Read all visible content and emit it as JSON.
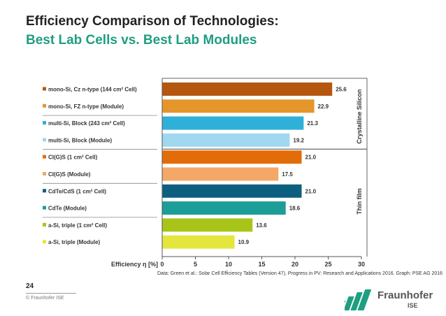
{
  "slide": {
    "title_line1": "Efficiency Comparison of Technologies:",
    "title_line2": "Best Lab Cells vs. Best Lab Modules",
    "source": "Data: Green et al.: Solar Cell Efficiency Tables (Version 47), Progress in PV: Research and Applications 2016. Graph: PSE AG 2016",
    "page_number": "24",
    "copyright": "© Fraunhofer ISE",
    "logo_name": "Fraunhofer",
    "logo_sub": "ISE",
    "title_color": "#222222",
    "subtitle_color": "#1f9e80"
  },
  "chart_data": {
    "type": "bar",
    "orientation": "horizontal",
    "categories": [
      "mono-Si, Cz n-type (144 cm² Cell)",
      "mono-Si, FZ n-type (Module)",
      "multi-Si, Block (243 cm² Cell)",
      "multi-Si, Block (Module)",
      "CI(G)S (1 cm² Cell)",
      "CI(G)S (Module)",
      "CdTe/CdS (1 cm² Cell)",
      "CdTe (Module)",
      "a-Si, triple (1 cm² Cell)",
      "a-Si, triple (Module)"
    ],
    "values": [
      25.6,
      22.9,
      21.3,
      19.2,
      21.0,
      17.5,
      21.0,
      18.6,
      13.6,
      10.9
    ],
    "value_labels": [
      "25.6",
      "22.9",
      "21.3",
      "19.2",
      "21.0",
      "17.5",
      "21.0",
      "18.6",
      "13.6",
      "10.9"
    ],
    "colors": [
      "#b5570f",
      "#e5962a",
      "#2fb0d8",
      "#9fd8ef",
      "#e36c0a",
      "#f4a766",
      "#0d5f80",
      "#1c9d97",
      "#a9c418",
      "#e4e63e"
    ],
    "xlabel": "Efficiency η [%]",
    "xlim": [
      0,
      30
    ],
    "xticks": [
      "0",
      "5",
      "10",
      "15",
      "20",
      "25",
      "30"
    ],
    "groups": [
      {
        "label": "Crystalline Silicon",
        "from": 0,
        "to": 3
      },
      {
        "label": "Thin film",
        "from": 4,
        "to": 9
      }
    ],
    "grid": false,
    "legend": "none"
  }
}
